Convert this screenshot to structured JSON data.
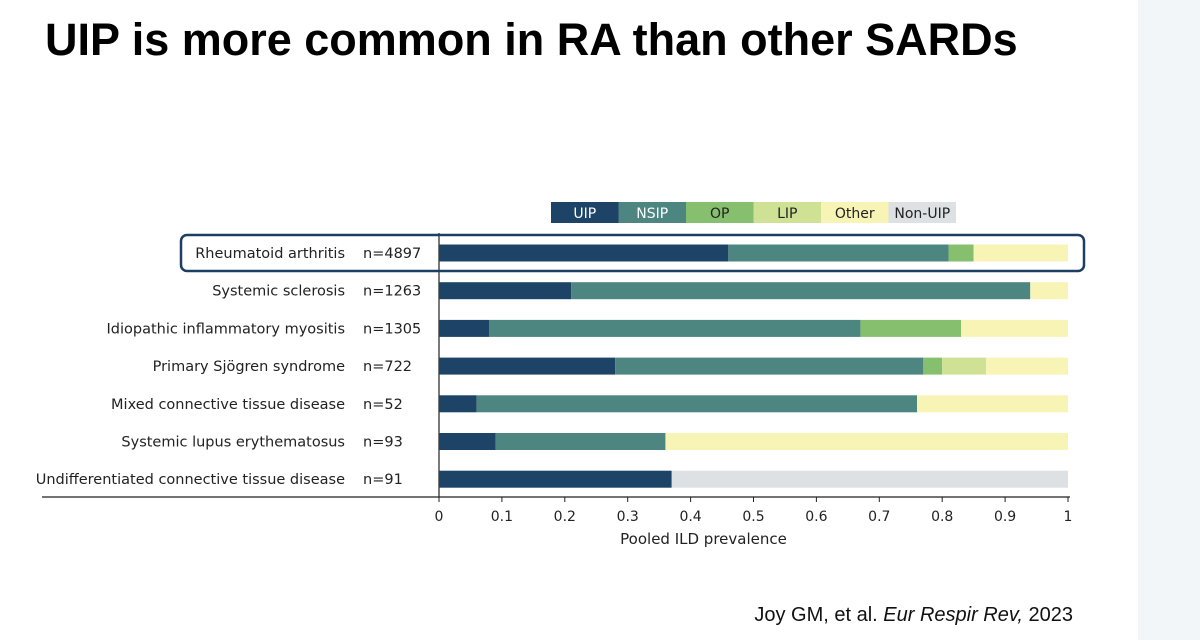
{
  "slide": {
    "title": "UIP is more common in RA than other SARDs",
    "citation": {
      "authors": "Joy GM, et al.",
      "journal": "Eur Respir Rev,",
      "year": "2023"
    }
  },
  "colors": {
    "UIP": "#1d4467",
    "NSIP": "#4d8580",
    "OP": "#86c06e",
    "LIP": "#cfe195",
    "Other": "#f7f4b6",
    "Non-UIP": "#dde1e4",
    "highlight": "#1d3d62",
    "axis": "#222222"
  },
  "chart_data": {
    "type": "bar",
    "orientation": "horizontal",
    "stacked": true,
    "xlabel": "Pooled ILD prevalence",
    "xlim": [
      0,
      1
    ],
    "xticks": [
      "0",
      "0.1",
      "0.2",
      "0.3",
      "0.4",
      "0.5",
      "0.6",
      "0.7",
      "0.8",
      "0.9",
      "1"
    ],
    "legend": [
      "UIP",
      "NSIP",
      "OP",
      "LIP",
      "Other",
      "Non-UIP"
    ],
    "legend_position": "top-right",
    "highlighted_category": "Rheumatoid arthritis",
    "categories": [
      "Rheumatoid arthritis",
      "Systemic sclerosis",
      "Idiopathic inflammatory myositis",
      "Primary Sjögren syndrome",
      "Mixed connective tissue disease",
      "Systemic lupus erythematosus",
      "Undifferentiated connective tissue disease"
    ],
    "sample_sizes": [
      "n=4897",
      "n=1263",
      "n=1305",
      "n=722",
      "n=52",
      "n=93",
      "n=91"
    ],
    "series": [
      {
        "name": "UIP",
        "values": [
          0.46,
          0.21,
          0.08,
          0.28,
          0.06,
          0.09,
          0.37
        ]
      },
      {
        "name": "NSIP",
        "values": [
          0.35,
          0.73,
          0.59,
          0.49,
          0.7,
          0.27,
          0.0
        ]
      },
      {
        "name": "OP",
        "values": [
          0.04,
          0.0,
          0.16,
          0.03,
          0.0,
          0.0,
          0.0
        ]
      },
      {
        "name": "LIP",
        "values": [
          0.0,
          0.0,
          0.0,
          0.07,
          0.0,
          0.0,
          0.0
        ]
      },
      {
        "name": "Other",
        "values": [
          0.15,
          0.06,
          0.17,
          0.13,
          0.24,
          0.64,
          0.0
        ]
      },
      {
        "name": "Non-UIP",
        "values": [
          0.0,
          0.0,
          0.0,
          0.0,
          0.0,
          0.0,
          0.63
        ]
      }
    ]
  }
}
